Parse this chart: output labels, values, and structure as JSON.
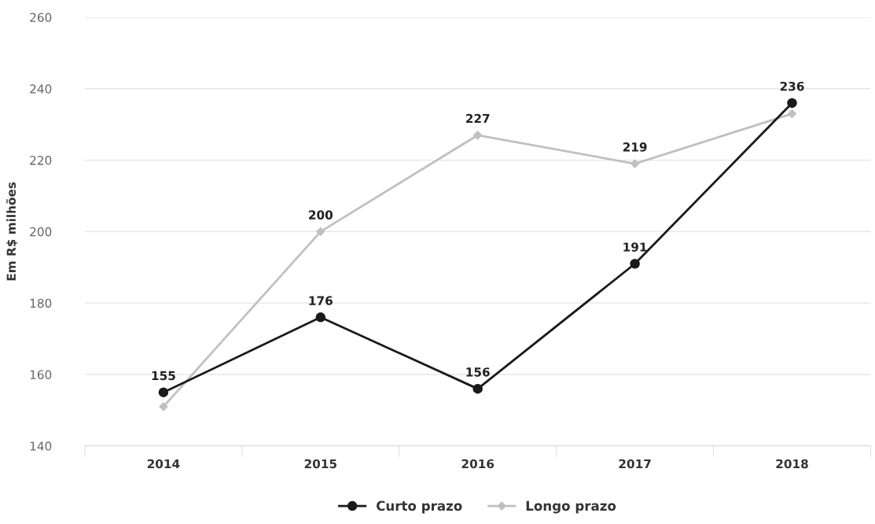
{
  "chart_data": {
    "type": "line",
    "ylabel": "Em R$ milhões",
    "categories": [
      "2014",
      "2015",
      "2016",
      "2017",
      "2018"
    ],
    "series": [
      {
        "name": "Curto prazo",
        "color": "#1a1a1a",
        "marker": "circle",
        "values": [
          155,
          176,
          156,
          191,
          236
        ],
        "value_labels": [
          "155",
          "176",
          "156",
          "191",
          "236"
        ]
      },
      {
        "name": "Longo prazo",
        "color": "#c0c0c0",
        "marker": "diamond",
        "values": [
          151,
          200,
          227,
          219,
          233
        ],
        "value_labels": [
          null,
          "200",
          "227",
          "219",
          null
        ]
      }
    ],
    "ylim": [
      140,
      260
    ],
    "yticks": [
      140,
      160,
      180,
      200,
      220,
      240,
      260
    ],
    "grid": "y",
    "legend": "bottom"
  }
}
